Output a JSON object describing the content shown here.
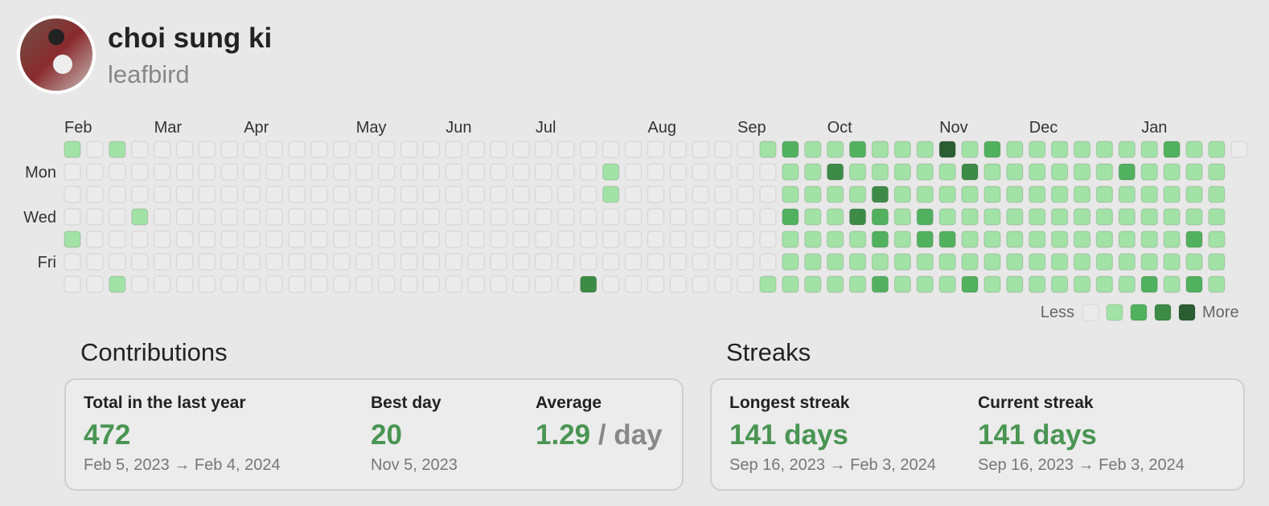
{
  "profile": {
    "name": "choi sung ki",
    "username": "leafbird"
  },
  "calendar": {
    "week_months": [
      "Feb",
      null,
      null,
      null,
      "Mar",
      null,
      null,
      null,
      "Apr",
      null,
      null,
      null,
      null,
      "May",
      null,
      null,
      null,
      "Jun",
      null,
      null,
      null,
      "Jul",
      null,
      null,
      null,
      null,
      "Aug",
      null,
      null,
      null,
      "Sep",
      null,
      null,
      null,
      "Oct",
      null,
      null,
      null,
      null,
      "Nov",
      null,
      null,
      null,
      "Dec",
      null,
      null,
      null,
      null,
      "Jan",
      null,
      null,
      null,
      null
    ],
    "day_labels": [
      "Mon",
      "Wed",
      "Fri"
    ],
    "level_colors": [
      "#ebebeb",
      "#a2e2a6",
      "#52b15f",
      "#3d8b47",
      "#2b5d33"
    ],
    "rows": [
      [
        1,
        0,
        1,
        0,
        0,
        0,
        0,
        0,
        0,
        0,
        0,
        0,
        0,
        0,
        0,
        0,
        0,
        0,
        0,
        0,
        0,
        0,
        0,
        0,
        0,
        0,
        0,
        0,
        0,
        0,
        0,
        1,
        2,
        1,
        1,
        2,
        1,
        1,
        1,
        4,
        1,
        2,
        1,
        1,
        1,
        1,
        1,
        1,
        1,
        2,
        1,
        1,
        0
      ],
      [
        0,
        0,
        0,
        0,
        0,
        0,
        0,
        0,
        0,
        0,
        0,
        0,
        0,
        0,
        0,
        0,
        0,
        0,
        0,
        0,
        0,
        0,
        0,
        0,
        1,
        0,
        0,
        0,
        0,
        0,
        0,
        0,
        1,
        1,
        3,
        1,
        1,
        1,
        1,
        1,
        3,
        1,
        1,
        1,
        1,
        1,
        1,
        2,
        1,
        1,
        1,
        1,
        null
      ],
      [
        0,
        0,
        0,
        0,
        0,
        0,
        0,
        0,
        0,
        0,
        0,
        0,
        0,
        0,
        0,
        0,
        0,
        0,
        0,
        0,
        0,
        0,
        0,
        0,
        1,
        0,
        0,
        0,
        0,
        0,
        0,
        0,
        1,
        1,
        1,
        1,
        3,
        1,
        1,
        1,
        1,
        1,
        1,
        1,
        1,
        1,
        1,
        1,
        1,
        1,
        1,
        1,
        null
      ],
      [
        0,
        0,
        0,
        1,
        0,
        0,
        0,
        0,
        0,
        0,
        0,
        0,
        0,
        0,
        0,
        0,
        0,
        0,
        0,
        0,
        0,
        0,
        0,
        0,
        0,
        0,
        0,
        0,
        0,
        0,
        0,
        0,
        2,
        1,
        1,
        3,
        2,
        1,
        2,
        1,
        1,
        1,
        1,
        1,
        1,
        1,
        1,
        1,
        1,
        1,
        1,
        1,
        null
      ],
      [
        1,
        0,
        0,
        0,
        0,
        0,
        0,
        0,
        0,
        0,
        0,
        0,
        0,
        0,
        0,
        0,
        0,
        0,
        0,
        0,
        0,
        0,
        0,
        0,
        0,
        0,
        0,
        0,
        0,
        0,
        0,
        0,
        1,
        1,
        1,
        1,
        2,
        1,
        2,
        2,
        1,
        1,
        1,
        1,
        1,
        1,
        1,
        1,
        1,
        1,
        2,
        1,
        null
      ],
      [
        0,
        0,
        0,
        0,
        0,
        0,
        0,
        0,
        0,
        0,
        0,
        0,
        0,
        0,
        0,
        0,
        0,
        0,
        0,
        0,
        0,
        0,
        0,
        0,
        0,
        0,
        0,
        0,
        0,
        0,
        0,
        0,
        1,
        1,
        1,
        1,
        1,
        1,
        1,
        1,
        1,
        1,
        1,
        1,
        1,
        1,
        1,
        1,
        1,
        1,
        1,
        1,
        null
      ],
      [
        0,
        0,
        1,
        0,
        0,
        0,
        0,
        0,
        0,
        0,
        0,
        0,
        0,
        0,
        0,
        0,
        0,
        0,
        0,
        0,
        0,
        0,
        0,
        3,
        0,
        0,
        0,
        0,
        0,
        0,
        0,
        1,
        1,
        1,
        1,
        1,
        2,
        1,
        1,
        1,
        2,
        1,
        1,
        1,
        1,
        1,
        1,
        1,
        2,
        1,
        2,
        1,
        null
      ]
    ],
    "legend_less": "Less",
    "legend_more": "More"
  },
  "contributions": {
    "title": "Contributions",
    "items": [
      {
        "label": "Total in the last year",
        "value": "472",
        "detail": "Feb 5, 2023 → Feb 4, 2024"
      },
      {
        "label": "Best day",
        "value": "20",
        "detail": "Nov 5, 2023"
      },
      {
        "label": "Average",
        "value": "1.29",
        "unit": "/ day"
      }
    ]
  },
  "streaks": {
    "title": "Streaks",
    "items": [
      {
        "label": "Longest streak",
        "value": "141 days",
        "detail": "Sep 16, 2023 → Feb 3, 2024"
      },
      {
        "label": "Current streak",
        "value": "141 days",
        "detail": "Sep 16, 2023 → Feb 3, 2024"
      }
    ]
  }
}
